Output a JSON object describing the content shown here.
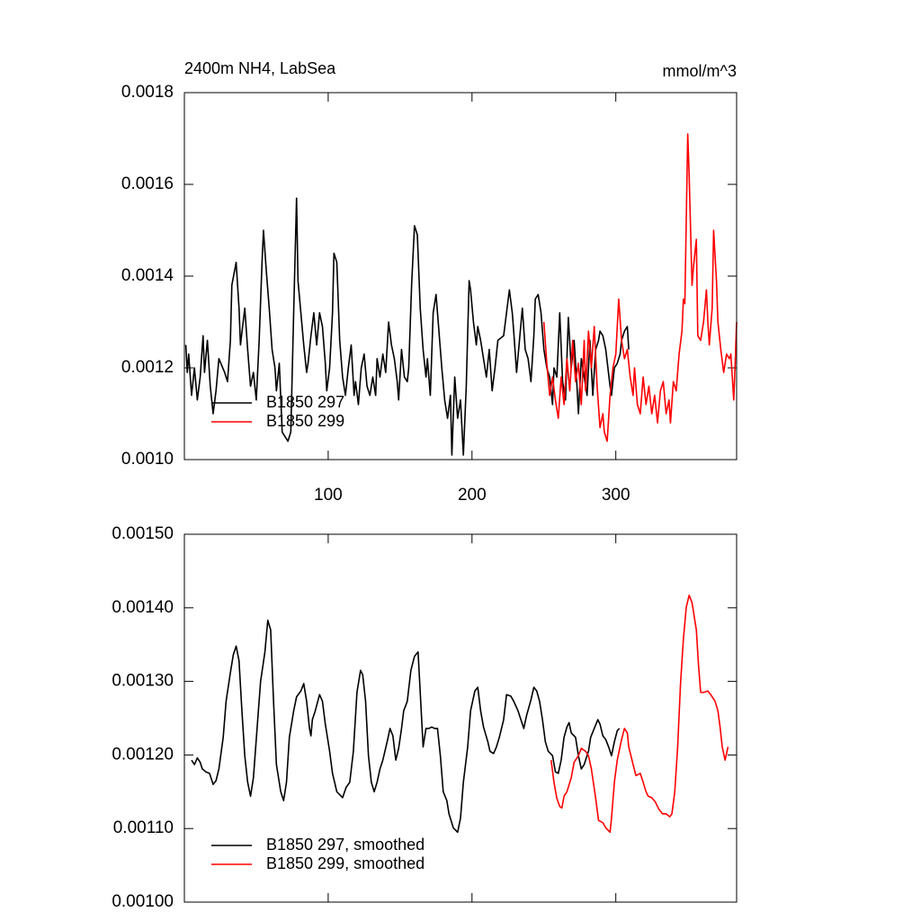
{
  "chart_data": [
    {
      "type": "line",
      "title_left": "2400m NH4, LabSea",
      "title_right": "mmol/m^3",
      "xlim": [
        0,
        384
      ],
      "xticks": [
        100,
        200,
        300
      ],
      "xtick_labels": true,
      "ylim": [
        0.001,
        0.0018
      ],
      "yticks": [
        {
          "value": 0.001,
          "label": "0.0010"
        },
        {
          "value": 0.0012,
          "label": "0.0012"
        },
        {
          "value": 0.0014,
          "label": "0.0014"
        },
        {
          "value": 0.0016,
          "label": "0.0016"
        },
        {
          "value": 0.0018,
          "label": "0.0018"
        }
      ],
      "legend": "lower left",
      "series": [
        {
          "name": "B1850 297",
          "color": "#000000",
          "x": [
            1,
            2,
            3,
            5,
            7,
            9,
            11,
            13,
            14,
            16,
            18,
            20,
            22,
            24,
            28,
            30,
            32,
            33,
            36,
            38,
            39,
            42,
            44,
            46,
            48,
            50,
            52,
            54,
            55,
            57,
            59,
            61,
            63,
            64,
            66,
            68,
            72,
            74,
            76,
            78,
            79,
            81,
            83,
            85,
            86,
            88,
            90,
            92,
            94,
            96,
            98,
            99,
            101,
            103,
            104,
            106,
            108,
            110,
            112,
            114,
            116,
            118,
            119,
            121,
            123,
            125,
            127,
            129,
            131,
            133,
            134,
            136,
            138,
            140,
            142,
            144,
            146,
            148,
            149,
            151,
            153,
            155,
            156,
            158,
            160,
            162,
            164,
            166,
            168,
            169,
            171,
            173,
            175,
            177,
            179,
            181,
            183,
            185,
            186,
            188,
            190,
            192,
            194,
            196,
            198,
            199,
            201,
            203,
            204,
            206,
            208,
            210,
            212,
            214,
            216,
            218,
            222,
            224,
            226,
            228,
            229,
            231,
            233,
            235,
            237,
            239,
            241,
            243,
            244,
            246,
            248,
            250,
            252,
            254,
            256,
            257,
            259,
            261,
            263,
            265,
            267,
            269,
            271,
            273,
            274,
            276,
            278,
            280,
            282,
            284,
            286,
            288,
            289,
            291,
            293,
            296,
            297,
            299,
            301,
            303,
            304,
            306,
            308,
            309
          ],
          "values": [
            0.00125,
            0.00119,
            0.00123,
            0.00114,
            0.0012,
            0.00113,
            0.00118,
            0.00127,
            0.00119,
            0.00126,
            0.00116,
            0.0011,
            0.00115,
            0.00122,
            0.00119,
            0.00117,
            0.00126,
            0.00138,
            0.00143,
            0.00133,
            0.00125,
            0.00133,
            0.00124,
            0.00116,
            0.00119,
            0.00113,
            0.00126,
            0.00143,
            0.0015,
            0.00141,
            0.00133,
            0.00124,
            0.0012,
            0.00115,
            0.00121,
            0.00106,
            0.00104,
            0.00106,
            0.00132,
            0.00157,
            0.00139,
            0.00132,
            0.00125,
            0.00119,
            0.00121,
            0.00127,
            0.00132,
            0.00125,
            0.00132,
            0.00129,
            0.00121,
            0.00115,
            0.0012,
            0.00132,
            0.00145,
            0.00143,
            0.00126,
            0.00118,
            0.00114,
            0.0012,
            0.00125,
            0.00114,
            0.00117,
            0.00112,
            0.0012,
            0.00123,
            0.00116,
            0.00114,
            0.00118,
            0.00114,
            0.00122,
            0.00118,
            0.00123,
            0.00119,
            0.0013,
            0.00125,
            0.00122,
            0.00117,
            0.00113,
            0.00124,
            0.00118,
            0.00117,
            0.0012,
            0.00138,
            0.00151,
            0.00149,
            0.00133,
            0.00124,
            0.00118,
            0.00122,
            0.00114,
            0.00132,
            0.00136,
            0.00128,
            0.0012,
            0.00113,
            0.00109,
            0.00114,
            0.00101,
            0.00118,
            0.00109,
            0.00113,
            0.00101,
            0.00116,
            0.00139,
            0.00137,
            0.0013,
            0.00125,
            0.00129,
            0.00126,
            0.00122,
            0.00118,
            0.00124,
            0.00115,
            0.0012,
            0.00126,
            0.00127,
            0.00132,
            0.00137,
            0.00132,
            0.00128,
            0.00119,
            0.00126,
            0.00133,
            0.00124,
            0.00122,
            0.00117,
            0.00127,
            0.00135,
            0.00136,
            0.00132,
            0.00124,
            0.0012,
            0.00118,
            0.00112,
            0.0012,
            0.00118,
            0.00132,
            0.00117,
            0.00113,
            0.00131,
            0.0012,
            0.00126,
            0.00116,
            0.0011,
            0.00122,
            0.00118,
            0.00114,
            0.00126,
            0.00114,
            0.00124,
            0.00126,
            0.00128,
            0.00127,
            0.00124,
            0.00116,
            0.00114,
            0.0012,
            0.00121,
            0.00123,
            0.00126,
            0.00128,
            0.00129,
            0.00124
          ]
        },
        {
          "name": "B1850 299",
          "color": "#ff0000",
          "x": [
            250,
            252,
            254,
            256,
            258,
            260,
            262,
            264,
            266,
            268,
            270,
            272,
            274,
            276,
            278,
            279,
            281,
            283,
            285,
            287,
            289,
            291,
            292,
            294,
            296,
            298,
            300,
            302,
            304,
            306,
            308,
            310,
            312,
            313,
            315,
            317,
            319,
            321,
            323,
            325,
            327,
            329,
            331,
            333,
            335,
            337,
            338,
            340,
            342,
            344,
            346,
            347,
            348,
            350,
            351,
            353,
            354,
            356,
            357,
            359,
            361,
            363,
            364,
            365,
            367,
            368,
            370,
            371,
            373,
            375,
            377,
            379,
            380,
            382,
            383,
            384
          ],
          "values": [
            0.0013,
            0.00121,
            0.00114,
            0.00118,
            0.00113,
            0.00109,
            0.00118,
            0.00112,
            0.00122,
            0.00115,
            0.00126,
            0.00117,
            0.00121,
            0.00112,
            0.00126,
            0.00115,
            0.00128,
            0.0012,
            0.00129,
            0.00116,
            0.00107,
            0.0011,
            0.00106,
            0.00104,
            0.00114,
            0.0012,
            0.00123,
            0.00135,
            0.00126,
            0.00122,
            0.00124,
            0.00118,
            0.00114,
            0.0012,
            0.00112,
            0.0011,
            0.00118,
            0.00112,
            0.00116,
            0.0011,
            0.00114,
            0.00108,
            0.00115,
            0.00117,
            0.0011,
            0.00113,
            0.00108,
            0.00117,
            0.00115,
            0.00123,
            0.00128,
            0.00135,
            0.00134,
            0.00171,
            0.00162,
            0.00138,
            0.00142,
            0.00148,
            0.00127,
            0.00126,
            0.0013,
            0.00137,
            0.0013,
            0.00125,
            0.00133,
            0.0015,
            0.00139,
            0.0013,
            0.00124,
            0.00119,
            0.00123,
            0.00122,
            0.00123,
            0.00113,
            0.00121,
            0.0013
          ]
        }
      ]
    },
    {
      "type": "line",
      "xlim": [
        0,
        384
      ],
      "xticks": [
        100,
        200,
        300
      ],
      "xtick_labels": false,
      "ylim": [
        0.001,
        0.0015
      ],
      "yticks": [
        {
          "value": 0.001,
          "label": "0.00100"
        },
        {
          "value": 0.0011,
          "label": "0.00110"
        },
        {
          "value": 0.0012,
          "label": "0.00120"
        },
        {
          "value": 0.0013,
          "label": "0.00130"
        },
        {
          "value": 0.0014,
          "label": "0.00140"
        },
        {
          "value": 0.0015,
          "label": "0.00150"
        }
      ],
      "legend": "lower left",
      "series": [
        {
          "name": "B1850 297, smoothed",
          "color": "#000000",
          "x": [
            5,
            7,
            9,
            11,
            12.5,
            15,
            17.5,
            20,
            22,
            24,
            27,
            29,
            32,
            34,
            36,
            38,
            40,
            42,
            44,
            46,
            48,
            51,
            53,
            56,
            58,
            60,
            62,
            64,
            67,
            69,
            71,
            73,
            76,
            78,
            81,
            83,
            85,
            87,
            88,
            89,
            91,
            94,
            96,
            98,
            101,
            103,
            106,
            107.5,
            110,
            112.5,
            115,
            117.5,
            120,
            122.5,
            124,
            126,
            128,
            130,
            132,
            134,
            136,
            138,
            141,
            143,
            145,
            147,
            149,
            151,
            152.5,
            155,
            157.5,
            160,
            162.5,
            164,
            166,
            168,
            170,
            172,
            174,
            176,
            178,
            180,
            182.5,
            184,
            187,
            190,
            192,
            194,
            197,
            199,
            202,
            204,
            206,
            208,
            211,
            212.5,
            215,
            217,
            219,
            222,
            224,
            227,
            229,
            232,
            234,
            236,
            238,
            241,
            243,
            245,
            247,
            249,
            251,
            253,
            256,
            258,
            260,
            262,
            264,
            266,
            267.5,
            269,
            272,
            274,
            276,
            278,
            281,
            282.5,
            285,
            287.5,
            289,
            291,
            293,
            295,
            297,
            299,
            301,
            302.5
          ],
          "values": [
            0.001193,
            0.001187,
            0.001196,
            0.00119,
            0.001181,
            0.001177,
            0.001175,
            0.00116,
            0.001165,
            0.001181,
            0.001224,
            0.001273,
            0.001312,
            0.001336,
            0.001348,
            0.001328,
            0.00126,
            0.001199,
            0.001163,
            0.001144,
            0.001169,
            0.001248,
            0.0013,
            0.00134,
            0.001383,
            0.00137,
            0.001273,
            0.001187,
            0.00115,
            0.001138,
            0.001163,
            0.001224,
            0.00126,
            0.001279,
            0.001287,
            0.001297,
            0.001273,
            0.001236,
            0.001226,
            0.001248,
            0.00126,
            0.001282,
            0.001273,
            0.001242,
            0.001205,
            0.001175,
            0.00115,
            0.001147,
            0.001142,
            0.001156,
            0.001163,
            0.001205,
            0.001285,
            0.001315,
            0.001309,
            0.001273,
            0.001199,
            0.001163,
            0.00115,
            0.001163,
            0.001181,
            0.001193,
            0.001218,
            0.001236,
            0.001226,
            0.001193,
            0.001209,
            0.001236,
            0.00126,
            0.001273,
            0.001315,
            0.001334,
            0.00134,
            0.001285,
            0.001211,
            0.001236,
            0.001236,
            0.001238,
            0.001236,
            0.001236,
            0.001199,
            0.00115,
            0.001138,
            0.00112,
            0.001101,
            0.001095,
            0.001114,
            0.001163,
            0.001211,
            0.00126,
            0.001287,
            0.001292,
            0.00126,
            0.001238,
            0.001218,
            0.001205,
            0.001202,
            0.001211,
            0.001224,
            0.001248,
            0.001282,
            0.00128,
            0.001273,
            0.00126,
            0.001248,
            0.001236,
            0.001254,
            0.001275,
            0.001292,
            0.001287,
            0.001273,
            0.001248,
            0.001218,
            0.001205,
            0.001199,
            0.001177,
            0.001175,
            0.001193,
            0.001224,
            0.001238,
            0.001244,
            0.00123,
            0.001224,
            0.001199,
            0.001181,
            0.001187,
            0.001205,
            0.001224,
            0.001236,
            0.001248,
            0.001242,
            0.001226,
            0.001221,
            0.001211,
            0.001199,
            0.001218,
            0.001233,
            0.001236
          ]
        },
        {
          "name": "B1850 299, smoothed",
          "color": "#ff0000",
          "x": [
            255,
            257,
            259,
            261,
            262.5,
            264,
            266,
            269,
            271,
            274,
            276,
            279,
            281,
            283,
            286,
            288,
            291,
            293,
            296,
            297,
            299,
            301,
            304,
            306,
            308,
            309,
            312,
            314,
            317,
            319,
            321,
            322.5,
            325,
            327.5,
            330,
            332.5,
            335,
            337.5,
            339,
            341,
            343,
            345,
            347,
            349,
            351,
            353,
            356,
            357.5,
            359,
            361,
            364,
            366,
            369,
            371,
            372.5,
            374,
            376,
            378
          ],
          "values": [
            0.001193,
            0.001163,
            0.001141,
            0.00113,
            0.001128,
            0.001144,
            0.00115,
            0.001169,
            0.00119,
            0.001199,
            0.001209,
            0.001205,
            0.001199,
            0.001181,
            0.001141,
            0.001111,
            0.001108,
            0.001101,
            0.001095,
            0.001114,
            0.001163,
            0.001193,
            0.001221,
            0.001236,
            0.00123,
            0.001211,
            0.001187,
            0.001172,
            0.001175,
            0.001163,
            0.00115,
            0.001144,
            0.001142,
            0.001136,
            0.001126,
            0.00112,
            0.00112,
            0.001116,
            0.00112,
            0.00115,
            0.001211,
            0.001297,
            0.001358,
            0.001401,
            0.001417,
            0.001407,
            0.00137,
            0.001322,
            0.001285,
            0.001285,
            0.001287,
            0.001282,
            0.001273,
            0.00126,
            0.001238,
            0.001211,
            0.001193,
            0.001211
          ]
        }
      ]
    }
  ]
}
